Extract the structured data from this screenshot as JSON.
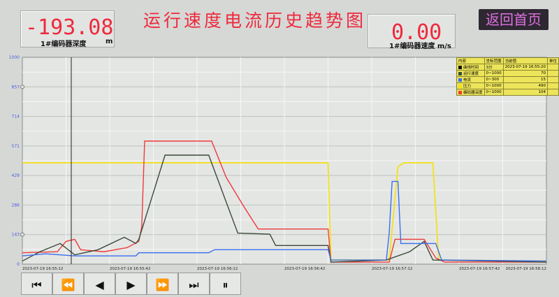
{
  "header": {
    "title": "运行速度电流历史趋势图",
    "home_button": "返回首页"
  },
  "depth": {
    "value": "-193.08",
    "label": "1#编码器深度",
    "unit": "m"
  },
  "speed": {
    "value": "0.00",
    "label": "1#编码器速度 m/s"
  },
  "legend": {
    "headers": [
      "内容",
      "坐标范围",
      "当前值",
      "单位"
    ],
    "rows": [
      {
        "name": "曲线时间",
        "range": "3分",
        "value": "2023-07-19 16:55:20",
        "color": "#111111"
      },
      {
        "name": "运行速度",
        "range": "0~1000",
        "value": "70",
        "color": "#3a4a3a"
      },
      {
        "name": "电流",
        "range": "0~300",
        "value": "15",
        "color": "#3b6ef0"
      },
      {
        "name": "压力",
        "range": "0~1000",
        "value": "490",
        "color": "#f2e21a"
      },
      {
        "name": "编码器深度",
        "range": "0~1000",
        "value": "104",
        "color": "#ee3b3b"
      }
    ]
  },
  "controls": [
    {
      "name": "first-page-button",
      "icon": "⏮"
    },
    {
      "name": "fast-backward-button",
      "icon": "⏪"
    },
    {
      "name": "backward-button",
      "icon": "◀"
    },
    {
      "name": "forward-button",
      "icon": "▶"
    },
    {
      "name": "fast-forward-button",
      "icon": "⏩"
    },
    {
      "name": "last-page-button",
      "icon": "⏭"
    },
    {
      "name": "pause-button",
      "icon": "⏸"
    }
  ],
  "chart_data": {
    "type": "line",
    "ylim": [
      0,
      1000
    ],
    "yticks": [
      "0",
      "143",
      "286",
      "429",
      "571",
      "714",
      "857",
      "1000"
    ],
    "xlim": [
      "16:55:12",
      "16:58:12"
    ],
    "xticks": [
      "2023-07-19 16:55:12",
      "2023-07-19 16:55:42",
      "2023-07-19 16:56:12",
      "2023-07-19 16:56:42",
      "2023-07-19 16:57:12",
      "2023-07-19 16:57:42",
      "2023-07-19 16:58:12"
    ],
    "grid": true,
    "series": [
      {
        "name": "压力",
        "color": "#f2e21a",
        "points": [
          [
            "16:55:12",
            490
          ],
          [
            "16:56:57",
            490
          ],
          [
            "16:56:58",
            20
          ],
          [
            "16:57:18",
            20
          ],
          [
            "16:57:21",
            470
          ],
          [
            "16:57:23",
            490
          ],
          [
            "16:57:33",
            490
          ],
          [
            "16:57:35",
            20
          ],
          [
            "16:58:12",
            15
          ]
        ]
      },
      {
        "name": "编码器深度",
        "color": "#ee3b3b",
        "points": [
          [
            "16:55:12",
            55
          ],
          [
            "16:55:24",
            60
          ],
          [
            "16:55:27",
            110
          ],
          [
            "16:55:30",
            120
          ],
          [
            "16:55:32",
            70
          ],
          [
            "16:55:40",
            60
          ],
          [
            "16:55:48",
            80
          ],
          [
            "16:55:52",
            110
          ],
          [
            "16:55:53",
            180
          ],
          [
            "16:55:54",
            595
          ],
          [
            "16:56:17",
            595
          ],
          [
            "16:56:22",
            420
          ],
          [
            "16:56:28",
            280
          ],
          [
            "16:56:33",
            170
          ],
          [
            "16:56:57",
            170
          ],
          [
            "16:56:58",
            10
          ],
          [
            "16:57:18",
            10
          ],
          [
            "16:57:20",
            120
          ],
          [
            "16:57:30",
            120
          ],
          [
            "16:57:34",
            30
          ],
          [
            "16:57:37",
            10
          ],
          [
            "16:58:12",
            10
          ]
        ]
      },
      {
        "name": "运行速度",
        "color": "#3a4a3a",
        "points": [
          [
            "16:55:12",
            15
          ],
          [
            "16:55:18",
            60
          ],
          [
            "16:55:25",
            100
          ],
          [
            "16:55:30",
            45
          ],
          [
            "16:55:38",
            70
          ],
          [
            "16:55:47",
            130
          ],
          [
            "16:55:51",
            100
          ],
          [
            "16:55:52",
            120
          ],
          [
            "16:56:01",
            527
          ],
          [
            "16:56:16",
            527
          ],
          [
            "16:56:26",
            150
          ],
          [
            "16:56:37",
            145
          ],
          [
            "16:56:39",
            90
          ],
          [
            "16:56:57",
            90
          ],
          [
            "16:56:58",
            10
          ],
          [
            "16:57:17",
            20
          ],
          [
            "16:57:25",
            60
          ],
          [
            "16:57:30",
            110
          ],
          [
            "16:57:33",
            20
          ],
          [
            "16:58:12",
            10
          ]
        ]
      },
      {
        "name": "电流",
        "color": "#3b6ef0",
        "points": [
          [
            "16:55:12",
            40
          ],
          [
            "16:55:20",
            50
          ],
          [
            "16:55:30",
            40
          ],
          [
            "16:55:51",
            40
          ],
          [
            "16:55:52",
            55
          ],
          [
            "16:56:16",
            55
          ],
          [
            "16:56:18",
            70
          ],
          [
            "16:56:57",
            70
          ],
          [
            "16:56:58",
            20
          ],
          [
            "16:57:17",
            20
          ],
          [
            "16:57:18",
            150
          ],
          [
            "16:57:19",
            400
          ],
          [
            "16:57:21",
            400
          ],
          [
            "16:57:22",
            100
          ],
          [
            "16:57:34",
            100
          ],
          [
            "16:57:36",
            20
          ],
          [
            "16:58:12",
            15
          ]
        ]
      }
    ]
  }
}
